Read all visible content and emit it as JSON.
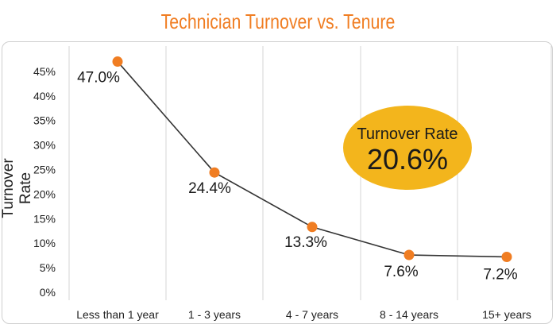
{
  "chart_data": {
    "type": "line",
    "title": "Technician Turnover vs. Tenure",
    "xlabel": "",
    "ylabel": "Turnover Rate",
    "categories": [
      "Less than 1 year",
      "1 - 3 years",
      "4 - 7 years",
      "8 - 14 years",
      "15+ years"
    ],
    "series": [
      {
        "values": [
          47.0,
          24.4,
          13.3,
          7.6,
          7.2
        ]
      }
    ],
    "data_labels": [
      "47.0%",
      "24.4%",
      "13.3%",
      "7.6%",
      "7.2%"
    ],
    "y_ticks": [
      "0%",
      "5%",
      "10%",
      "15%",
      "20%",
      "25%",
      "30%",
      "35%",
      "40%",
      "45%"
    ],
    "ylim": [
      0,
      48
    ],
    "grid": "vertical only",
    "legend": "none",
    "annotation": {
      "label": "Turnover Rate",
      "value": "20.6%"
    },
    "colors": {
      "title": "#f07d22",
      "marker": "#f07d22",
      "line": "#333333",
      "badge": "#f3b51c"
    }
  }
}
